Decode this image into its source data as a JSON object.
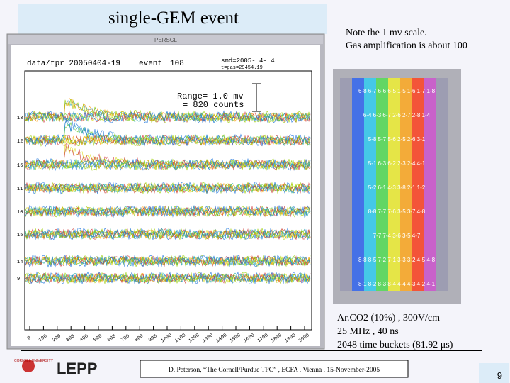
{
  "title": "single-GEM event",
  "note": [
    "Note the 1 mv scale.",
    "Gas amplification is about 100"
  ],
  "screen": {
    "window_title": "PERSCL",
    "run": "data/tpr 20050404-19",
    "event": "event",
    "event_number": "108",
    "smd": "smd=2005- 4- 4",
    "time": "t=gas=29454.19",
    "range": [
      "Range=   1.0 mv",
      "=  820 counts"
    ],
    "row_labels": [
      "13",
      "12",
      "16",
      "11",
      "10",
      "15",
      "14",
      "9"
    ],
    "xticks": [
      "0",
      "100",
      "200",
      "300",
      "400",
      "500",
      "600",
      "700",
      "800",
      "900",
      "1000",
      "1100",
      "1200",
      "1300",
      "1400",
      "1500",
      "1600",
      "1700",
      "1800",
      "1900",
      "2000"
    ]
  },
  "pads": [
    "6-8 6-7 6-6 6-5 1-5 1-6 1-7 1-8",
    "6-4 6-3 6-7 2-6 2-7 2-8 1-4",
    "5-8 5-7 5-6 2-5 2-6 3-1",
    "5-1 6-3 6-2 2-3 2-4 4-1",
    "5-2 6-1 4-3 3-8 2-1 1-2",
    "8-8 7-7 7-6 3-5 3-7 4-8",
    "7-7 7-4 3-6 3-5 4-7",
    "8-8 8-5 7-2 7-1 3-3 3-2 4-5 4-8",
    "8-1 8-2 8-3 8-4 4-4 4-3 4-2 4-1"
  ],
  "conditions": [
    "Ar.CO2 (10%) , 300V/cm",
    "25 MHz , 40 ns",
    "2048 time buckets  (81.92 μs)"
  ],
  "footer": {
    "logo_univ": "CORNELL UNIVERSITY",
    "logo": "LEPP",
    "citation": "D. Peterson, “The Cornell/Purdue TPC” , ECFA , Vienna , 15-November-2005",
    "page": "9"
  }
}
